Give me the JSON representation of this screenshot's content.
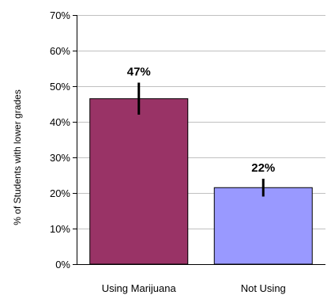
{
  "chart_data": {
    "type": "bar",
    "title": "",
    "xlabel": "",
    "ylabel": "% of Students with lower grades",
    "categories": [
      "Using Marijuana",
      "Not Using"
    ],
    "values": [
      46.5,
      21.5
    ],
    "data_labels": [
      "47%",
      "22%"
    ],
    "error_bars": [
      {
        "low": 42,
        "high": 51
      },
      {
        "low": 19,
        "high": 24
      }
    ],
    "colors": [
      "#993366",
      "#9999FF"
    ],
    "ylim": [
      0,
      70
    ],
    "yticks": [
      0,
      10,
      20,
      30,
      40,
      50,
      60,
      70
    ],
    "ytick_labels": [
      "0%",
      "10%",
      "20%",
      "30%",
      "40%",
      "50%",
      "60%",
      "70%"
    ],
    "grid": true,
    "legend": false
  }
}
